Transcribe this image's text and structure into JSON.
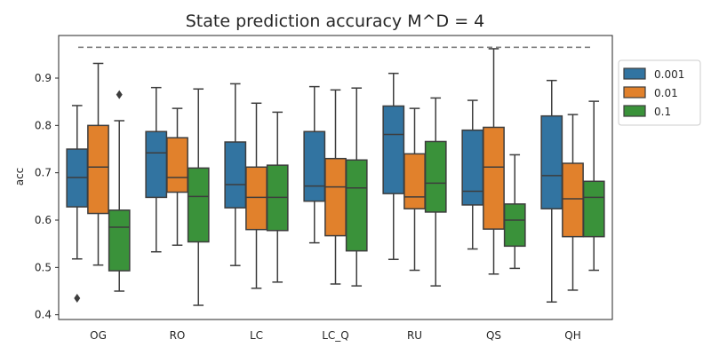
{
  "chart_data": {
    "type": "boxplot",
    "title": "State prediction accuracy M^D = 4",
    "xlabel": "",
    "ylabel": "acc",
    "ylim": [
      0.39,
      0.99
    ],
    "yticks": [
      "0.4",
      "0.5",
      "0.6",
      "0.7",
      "0.8",
      "0.9"
    ],
    "grid": false,
    "legend_position": "right, outside plot",
    "categories": [
      "OG",
      "RO",
      "LC",
      "LC_Q",
      "RU",
      "QS",
      "QH"
    ],
    "reference_line": {
      "value": 0.965,
      "style": "dashed",
      "color": "#808080"
    },
    "series": [
      {
        "name": "0.001",
        "color": "#3274a1",
        "boxes": [
          {
            "min": 0.518,
            "q1": 0.628,
            "median": 0.69,
            "q3": 0.75,
            "max": 0.842,
            "outliers": [
              0.435
            ]
          },
          {
            "min": 0.533,
            "q1": 0.648,
            "median": 0.742,
            "q3": 0.787,
            "max": 0.88,
            "outliers": []
          },
          {
            "min": 0.504,
            "q1": 0.626,
            "median": 0.675,
            "q3": 0.765,
            "max": 0.888,
            "outliers": []
          },
          {
            "min": 0.552,
            "q1": 0.64,
            "median": 0.672,
            "q3": 0.787,
            "max": 0.882,
            "outliers": []
          },
          {
            "min": 0.517,
            "q1": 0.656,
            "median": 0.781,
            "q3": 0.841,
            "max": 0.91,
            "outliers": []
          },
          {
            "min": 0.539,
            "q1": 0.632,
            "median": 0.661,
            "q3": 0.79,
            "max": 0.853,
            "outliers": []
          },
          {
            "min": 0.427,
            "q1": 0.624,
            "median": 0.694,
            "q3": 0.82,
            "max": 0.895,
            "outliers": []
          }
        ]
      },
      {
        "name": "0.01",
        "color": "#e1812c",
        "boxes": [
          {
            "min": 0.505,
            "q1": 0.614,
            "median": 0.712,
            "q3": 0.8,
            "max": 0.931,
            "outliers": []
          },
          {
            "min": 0.547,
            "q1": 0.659,
            "median": 0.69,
            "q3": 0.774,
            "max": 0.836,
            "outliers": []
          },
          {
            "min": 0.456,
            "q1": 0.58,
            "median": 0.648,
            "q3": 0.712,
            "max": 0.847,
            "outliers": []
          },
          {
            "min": 0.465,
            "q1": 0.567,
            "median": 0.67,
            "q3": 0.73,
            "max": 0.875,
            "outliers": []
          },
          {
            "min": 0.494,
            "q1": 0.624,
            "median": 0.649,
            "q3": 0.74,
            "max": 0.836,
            "outliers": []
          },
          {
            "min": 0.486,
            "q1": 0.581,
            "median": 0.712,
            "q3": 0.796,
            "max": 0.962,
            "outliers": []
          },
          {
            "min": 0.452,
            "q1": 0.565,
            "median": 0.645,
            "q3": 0.72,
            "max": 0.823,
            "outliers": []
          }
        ]
      },
      {
        "name": "0.1",
        "color": "#3a923a",
        "boxes": [
          {
            "min": 0.45,
            "q1": 0.493,
            "median": 0.585,
            "q3": 0.621,
            "max": 0.81,
            "outliers": [
              0.865
            ]
          },
          {
            "min": 0.42,
            "q1": 0.554,
            "median": 0.65,
            "q3": 0.71,
            "max": 0.877,
            "outliers": []
          },
          {
            "min": 0.469,
            "q1": 0.578,
            "median": 0.648,
            "q3": 0.716,
            "max": 0.828,
            "outliers": []
          },
          {
            "min": 0.461,
            "q1": 0.535,
            "median": 0.668,
            "q3": 0.727,
            "max": 0.879,
            "outliers": []
          },
          {
            "min": 0.461,
            "q1": 0.617,
            "median": 0.678,
            "q3": 0.766,
            "max": 0.858,
            "outliers": []
          },
          {
            "min": 0.498,
            "q1": 0.545,
            "median": 0.6,
            "q3": 0.634,
            "max": 0.738,
            "outliers": []
          },
          {
            "min": 0.494,
            "q1": 0.565,
            "median": 0.648,
            "q3": 0.682,
            "max": 0.851,
            "outliers": []
          }
        ]
      }
    ]
  }
}
